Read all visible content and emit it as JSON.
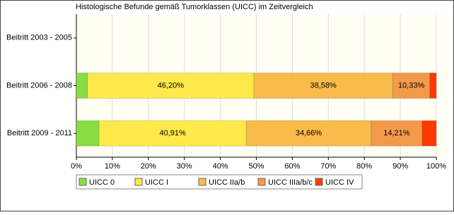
{
  "chart_data": {
    "type": "stacked-barh",
    "title": "Histologische Befunde gemäß Tumorklassen (UICC) im Zeitvergleich",
    "categories": [
      "Beitritt 2003 - 2005",
      "Beitritt 2006 - 2008",
      "Beitritt 2009 - 2011"
    ],
    "series": [
      {
        "name": "UICC 0",
        "color": "#88dd44",
        "values": [
          null,
          3.1,
          6.3
        ]
      },
      {
        "name": "UICC I",
        "color": "#ffe94a",
        "values": [
          null,
          46.2,
          40.91
        ],
        "value_labels": [
          null,
          "46,20%",
          "40,91%"
        ]
      },
      {
        "name": "UICC IIa/b",
        "color": "#f9bc4a",
        "values": [
          null,
          38.58,
          34.66
        ],
        "value_labels": [
          null,
          "38,58%",
          "34,66%"
        ]
      },
      {
        "name": "UICC IIIa/b/c",
        "color": "#f29a4a",
        "values": [
          null,
          10.33,
          14.21
        ],
        "value_labels": [
          null,
          "10,33%",
          "14,21%"
        ]
      },
      {
        "name": "UICC IV",
        "color": "#ff3a00",
        "values": [
          null,
          1.79,
          3.92
        ]
      }
    ],
    "xlim": [
      0,
      100
    ],
    "xticks": [
      {
        "value": 0,
        "label": "0%"
      },
      {
        "value": 10,
        "label": "10%"
      },
      {
        "value": 20,
        "label": "20%"
      },
      {
        "value": 30,
        "label": "30%"
      },
      {
        "value": 40,
        "label": "40%"
      },
      {
        "value": 50,
        "label": "50%"
      },
      {
        "value": 60,
        "label": "60%"
      },
      {
        "value": 70,
        "label": "70%"
      },
      {
        "value": 80,
        "label": "80%"
      },
      {
        "value": 90,
        "label": "90%"
      },
      {
        "value": 100,
        "label": "100%"
      }
    ],
    "grid": true,
    "legend": "bottom"
  }
}
